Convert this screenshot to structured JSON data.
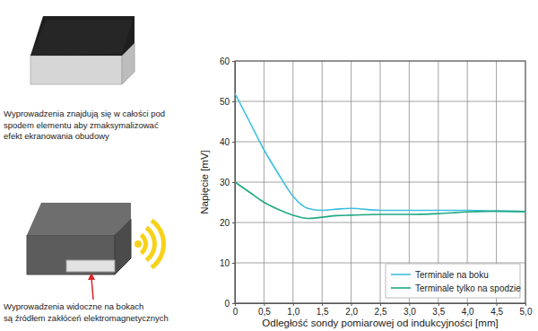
{
  "chart_data": {
    "type": "line",
    "annotations": [
      [
        "Wyprowadzenia znajdują się w całości pod",
        "spodem elementu aby zmaksymalizować",
        "efekt ekranowania obudowy"
      ],
      [
        "Wyprowadzenia widoczne na bokach",
        "są źródłem zakłóceń elektromagnetycznych"
      ]
    ],
    "x_label": "Odległość sondy pomiarowej od indukcyjności [mm]",
    "y_label": "Napięcie [mV]",
    "x": [
      0,
      0.25,
      0.5,
      0.75,
      1,
      1.25,
      1.5,
      1.75,
      2,
      2.5,
      3,
      3.5,
      4,
      4.5,
      5
    ],
    "series": [
      {
        "name": "Terminale na boku",
        "color": "#3ebfdf",
        "values": [
          52,
          45,
          38,
          32,
          26.5,
          23.5,
          23,
          23.3,
          23.5,
          23,
          23,
          23,
          23,
          22.8,
          22.7
        ]
      },
      {
        "name": "Terminale tylko na spodzie",
        "color": "#1fa882",
        "values": [
          30,
          27.5,
          25,
          23.2,
          21.8,
          21,
          21.3,
          21.7,
          21.8,
          22,
          22,
          22.2,
          22.6,
          22.8,
          22.7
        ]
      }
    ],
    "xlim": [
      0,
      5
    ],
    "xticks": [
      0,
      {
        "value": 0.5,
        "label": "0,5"
      },
      {
        "value": 1,
        "label": "1,0"
      },
      {
        "value": 1.5,
        "label": "1,5"
      },
      {
        "value": 2,
        "label": "2,0"
      },
      {
        "value": 2.5,
        "label": "2,5"
      },
      {
        "value": 3,
        "label": "3,0"
      },
      {
        "value": 3.5,
        "label": "3,5"
      },
      {
        "value": 4,
        "label": "4,0"
      },
      {
        "value": 4.5,
        "label": "4,5"
      },
      {
        "value": 5,
        "label": "5,0"
      }
    ],
    "ylim": [
      0,
      60
    ],
    "yticks": [
      0,
      10,
      20,
      30,
      40,
      50,
      60
    ],
    "grid": true,
    "legend": "lower right"
  }
}
